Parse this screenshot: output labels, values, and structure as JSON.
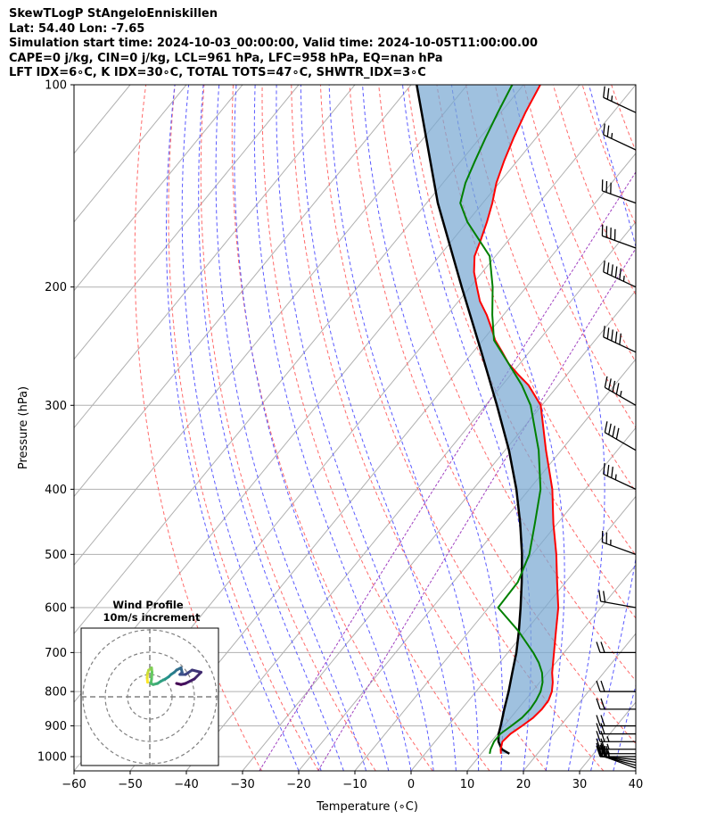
{
  "header": {
    "line1": "SkewTLogP StAngeloEnniskillen",
    "line2": "Lat: 54.40   Lon: -7.65",
    "line3": "Simulation start time: 2024-10-03_00:00:00, Valid time: 2024-10-05T11:00:00.00",
    "line4": "CAPE=0 j/kg, CIN=0 j/kg, LCL=961 hPa, LFC=958 hPa, EQ=nan hPa",
    "line5": "LFT IDX=6∘C, K IDX=30∘C, TOTAL TOTS=47∘C, SHWTR_IDX=3∘C"
  },
  "chart_data": {
    "type": "line",
    "xlabel": "Temperature (∘C)",
    "ylabel": "Pressure (hPa)",
    "xlim": [
      -60,
      40
    ],
    "ylim": [
      1050,
      100
    ],
    "y_scale": "log",
    "skew": "45deg",
    "grid": true,
    "x_ticks": [
      -60,
      -50,
      -40,
      -30,
      -20,
      -10,
      0,
      10,
      20,
      30,
      40
    ],
    "x_tick_labels": [
      "−60",
      "−50",
      "−40",
      "−30",
      "−20",
      "−10",
      "0",
      "10",
      "20",
      "30",
      "40"
    ],
    "y_ticks": [
      1000,
      900,
      800,
      700,
      600,
      500,
      400,
      300,
      200,
      100
    ],
    "y_tick_labels": [
      "1000",
      "900",
      "800",
      "700",
      "600",
      "500",
      "400",
      "300",
      "200",
      "100"
    ],
    "temperature": {
      "color": "#ff0000",
      "p": [
        990,
        975,
        950,
        925,
        900,
        875,
        850,
        825,
        800,
        775,
        750,
        700,
        650,
        600,
        550,
        500,
        450,
        400,
        350,
        300,
        290,
        280,
        270,
        260,
        250,
        240,
        230,
        220,
        210,
        200,
        190,
        180,
        170,
        160,
        150,
        140,
        130,
        120,
        110,
        100
      ],
      "values": [
        13.5,
        12.8,
        12.0,
        12.3,
        13.2,
        14.0,
        14.3,
        14.2,
        13.5,
        12.3,
        10.8,
        8.2,
        5.4,
        2.4,
        -1.5,
        -5.7,
        -10.7,
        -15.9,
        -22.7,
        -30.2,
        -32.7,
        -35.3,
        -38.7,
        -42.0,
        -44.8,
        -47.8,
        -50.3,
        -53.0,
        -56.2,
        -58.8,
        -61.5,
        -63.7,
        -65.0,
        -66.5,
        -68.3,
        -70.5,
        -72.3,
        -74.0,
        -75.6,
        -77.0
      ]
    },
    "dewpoint": {
      "color": "#008000",
      "p": [
        990,
        975,
        950,
        925,
        900,
        875,
        850,
        825,
        800,
        775,
        750,
        725,
        700,
        650,
        600,
        550,
        500,
        450,
        400,
        350,
        300,
        280,
        260,
        240,
        220,
        200,
        180,
        160,
        150,
        140,
        130,
        120,
        110,
        100
      ],
      "values": [
        11.5,
        11.0,
        10.5,
        10.5,
        11.3,
        12.0,
        12.2,
        12.0,
        11.5,
        10.5,
        9.0,
        7.0,
        4.5,
        -1.3,
        -8.3,
        -8.5,
        -10.5,
        -14.0,
        -18.0,
        -24.0,
        -32.0,
        -36.5,
        -42.0,
        -48.0,
        -52.0,
        -56.0,
        -61.0,
        -70.0,
        -74.0,
        -76.0,
        -77.5,
        -79.0,
        -80.5,
        -82.0
      ]
    },
    "parcel": {
      "color": "#000000",
      "p": [
        990,
        975,
        950,
        925,
        900,
        850,
        800,
        750,
        700,
        650,
        600,
        550,
        500,
        450,
        400,
        350,
        300,
        250,
        200,
        150,
        100
      ],
      "values": [
        15.0,
        13.0,
        11.3,
        10.2,
        9.4,
        7.6,
        5.8,
        3.7,
        1.5,
        -1.2,
        -4.3,
        -7.8,
        -11.8,
        -16.6,
        -22.3,
        -29.3,
        -38.0,
        -48.5,
        -61.5,
        -78.0,
        -99.0
      ]
    },
    "wind_barbs": {
      "p": [
        1040,
        1030,
        1020,
        1010,
        1000,
        990,
        975,
        950,
        925,
        900,
        850,
        800,
        700,
        600,
        500,
        400,
        350,
        300,
        250,
        200,
        175,
        150,
        125,
        110
      ],
      "speed_kt": [
        20,
        20,
        25,
        25,
        25,
        25,
        25,
        25,
        20,
        20,
        20,
        20,
        20,
        20,
        25,
        35,
        40,
        45,
        50,
        55,
        40,
        30,
        25,
        25
      ],
      "dir_deg": [
        290,
        285,
        280,
        275,
        270,
        270,
        270,
        270,
        270,
        270,
        270,
        270,
        270,
        280,
        290,
        295,
        300,
        300,
        295,
        295,
        290,
        290,
        295,
        295
      ]
    },
    "hodograph": {
      "title": "Wind Profile",
      "subtitle": "10m/s increment",
      "rings_ms": [
        10,
        20,
        30
      ],
      "u": [
        -1.0,
        -1.2,
        -1.0,
        -0.5,
        0.3,
        0.8,
        1.0,
        0.8,
        0.5,
        1.5,
        3.5,
        5.0,
        7.0,
        8.5,
        9.5,
        11.0,
        12.0,
        14.0,
        14.5,
        13.5,
        16.0,
        19.0,
        23.0,
        20.0,
        16.0,
        14.0,
        12.0
      ],
      "v": [
        6.5,
        8.5,
        10.5,
        12.0,
        12.5,
        13.0,
        11.0,
        8.0,
        6.0,
        5.5,
        6.0,
        7.0,
        8.0,
        9.0,
        10.0,
        11.0,
        12.0,
        13.0,
        11.0,
        10.0,
        10.0,
        12.0,
        11.0,
        8.0,
        6.0,
        5.5,
        6.0
      ]
    }
  }
}
